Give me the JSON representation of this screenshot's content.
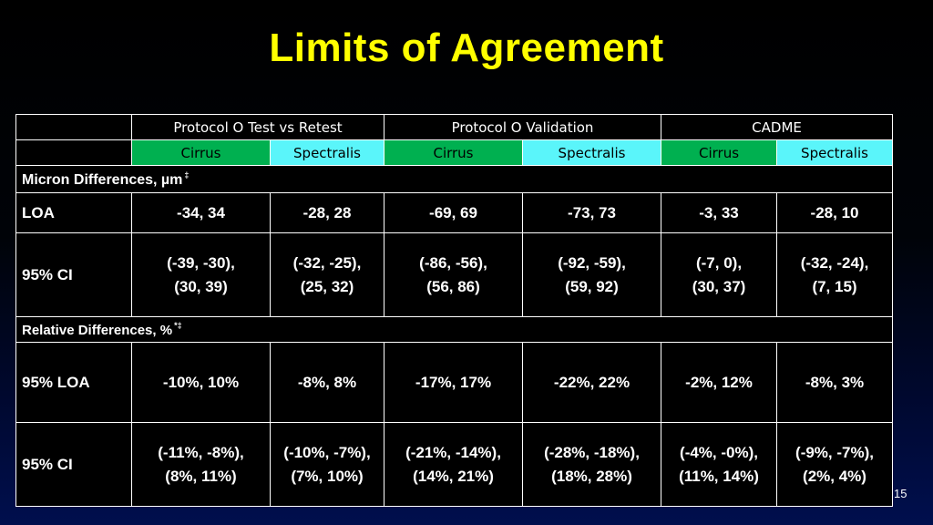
{
  "title": "Limits of Agreement",
  "table": {
    "groups": [
      {
        "label": "Protocol O Test vs Retest"
      },
      {
        "label": "Protocol O Validation"
      },
      {
        "label": "CADME"
      }
    ],
    "subheaders": [
      "Cirrus",
      "Spectralis",
      "Cirrus",
      "Spectralis",
      "Cirrus",
      "Spectralis"
    ],
    "micron_section": {
      "label": "Micron Differences, µm",
      "mark": "‡"
    },
    "relative_section": {
      "label": "Relative Differences, %",
      "mark": "*‡"
    },
    "rows": [
      {
        "label": "LOA",
        "cells": [
          [
            "-34, 34"
          ],
          [
            "-28, 28"
          ],
          [
            "-69, 69"
          ],
          [
            "-73, 73"
          ],
          [
            "-3, 33"
          ],
          [
            "-28, 10"
          ]
        ]
      },
      {
        "label": "95% CI",
        "cells": [
          [
            "(-39, -30),",
            "(30, 39)"
          ],
          [
            "(-32, -25),",
            "(25, 32)"
          ],
          [
            "(-86, -56),",
            "(56, 86)"
          ],
          [
            "(-92, -59),",
            "(59, 92)"
          ],
          [
            "(-7, 0),",
            "(30, 37)"
          ],
          [
            "(-32, -24),",
            "(7, 15)"
          ]
        ]
      },
      {
        "label": "95% LOA",
        "cells": [
          [
            "-10%, 10%"
          ],
          [
            "-8%, 8%"
          ],
          [
            "-17%, 17%"
          ],
          [
            "-22%, 22%"
          ],
          [
            "-2%, 12%"
          ],
          [
            "-8%, 3%"
          ]
        ]
      },
      {
        "label": "95% CI",
        "cells": [
          [
            "(-11%, -8%),",
            "(8%, 11%)"
          ],
          [
            "(-10%, -7%),",
            "(7%, 10%)"
          ],
          [
            "(-21%, -14%),",
            "(14%, 21%)"
          ],
          [
            "(-28%, -18%),",
            "(18%, 28%)"
          ],
          [
            "(-4%, -0%),",
            "(11%, 14%)"
          ],
          [
            "(-9%, -7%),",
            "(2%, 4%)"
          ]
        ]
      }
    ]
  },
  "page_number": "15",
  "colors": {
    "title": "#ffff00",
    "cirrus_fill": "#00b050",
    "spectralis_fill": "#5af5fa",
    "background_top": "#000000",
    "background_bottom": "#000f4e"
  }
}
